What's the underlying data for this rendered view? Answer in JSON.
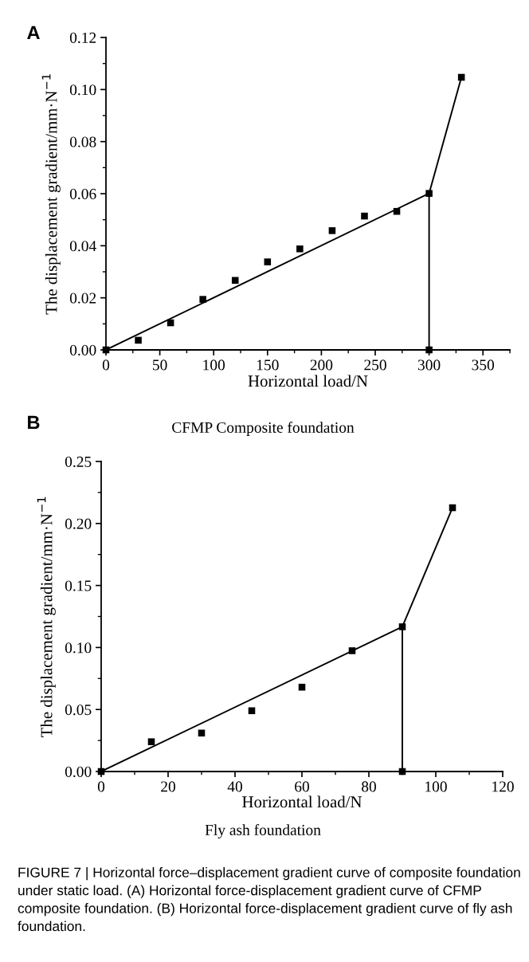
{
  "chart_data": [
    {
      "type": "scatter",
      "xlabel": "Horizontal load/N",
      "ylabel": "The displacement gradient/mm·N$^{−1}$",
      "annotations": [
        "A",
        "CFMP Composite foundation"
      ],
      "xlim": [
        0,
        375
      ],
      "ylim": [
        0,
        0.12
      ],
      "xticks": [
        0,
        {
          "value": 25,
          "label": null
        },
        50,
        {
          "value": 75,
          "label": null
        },
        100,
        {
          "value": 125,
          "label": null
        },
        150,
        {
          "value": 175,
          "label": null
        },
        200,
        {
          "value": 225,
          "label": null
        },
        250,
        {
          "value": 275,
          "label": null
        },
        300,
        {
          "value": 325,
          "label": null
        },
        350,
        {
          "value": 375,
          "label": null
        }
      ],
      "yticks": [
        {
          "value": 0,
          "label": "0.00"
        },
        {
          "value": 0.01,
          "label": null
        },
        {
          "value": 0.02,
          "label": "0.02"
        },
        {
          "value": 0.03,
          "label": null
        },
        {
          "value": 0.04,
          "label": "0.04"
        },
        {
          "value": 0.05,
          "label": null
        },
        {
          "value": 0.06,
          "label": "0.06"
        },
        {
          "value": 0.07,
          "label": null
        },
        {
          "value": 0.08,
          "label": "0.08"
        },
        {
          "value": 0.09,
          "label": null
        },
        {
          "value": 0.1,
          "label": "0.10"
        },
        {
          "value": 0.11,
          "label": null
        },
        {
          "value": 0.12,
          "label": "0.12"
        }
      ],
      "grid": false,
      "series": [
        {
          "marker": "square",
          "color": "#000000",
          "x": [
            0,
            30,
            60,
            90,
            120,
            150,
            180,
            210,
            240,
            270,
            300,
            330,
            300
          ],
          "values": [
            0,
            0.0037,
            0.0104,
            0.0194,
            0.0267,
            0.0338,
            0.0388,
            0.0458,
            0.0514,
            0.0532,
            0.0601,
            0.1047,
            0
          ]
        },
        {
          "type": "line",
          "marker": "none",
          "line_style": "solid",
          "color": "#000000",
          "x": [
            0,
            300,
            330
          ],
          "values": [
            0,
            0.0601,
            0.1047
          ]
        },
        {
          "type": "line",
          "marker": "none",
          "line_style": "solid",
          "color": "#000000",
          "x": [
            300,
            300
          ],
          "values": [
            0,
            0.0601
          ]
        }
      ]
    },
    {
      "type": "scatter",
      "xlabel": "Horizontal load/N",
      "ylabel": "The displacement gradient/mm·N$^{−1}$",
      "annotations": [
        "B",
        "Fly ash foundation",
        "FIGURE 7 | Horizontal force–displacement gradient curve of composite foundation under static load. (A) Horizontal force-displacement gradient curve of CFMP composite foundation. (B) Horizontal force-displacement gradient curve of fly ash foundation."
      ],
      "xlim": [
        0,
        120
      ],
      "ylim": [
        0,
        0.25
      ],
      "xticks": [
        0,
        {
          "value": 10,
          "label": null
        },
        20,
        {
          "value": 30,
          "label": null
        },
        40,
        {
          "value": 50,
          "label": null
        },
        60,
        {
          "value": 70,
          "label": null
        },
        80,
        {
          "value": 90,
          "label": null
        },
        100,
        {
          "value": 110,
          "label": null
        },
        120
      ],
      "yticks": [
        {
          "value": 0,
          "label": "0.00"
        },
        {
          "value": 0.025,
          "label": null
        },
        {
          "value": 0.05,
          "label": "0.05"
        },
        {
          "value": 0.075,
          "label": null
        },
        {
          "value": 0.1,
          "label": "0.10"
        },
        {
          "value": 0.125,
          "label": null
        },
        {
          "value": 0.15,
          "label": "0.15"
        },
        {
          "value": 0.175,
          "label": null
        },
        {
          "value": 0.2,
          "label": "0.20"
        },
        {
          "value": 0.225,
          "label": null
        },
        {
          "value": 0.25,
          "label": "0.25"
        }
      ],
      "grid": false,
      "series": [
        {
          "marker": "square",
          "color": "#000000",
          "x": [
            0,
            15,
            30,
            45,
            60,
            75,
            90,
            105,
            90
          ],
          "values": [
            0,
            0.024,
            0.031,
            0.049,
            0.068,
            0.0974,
            0.1167,
            0.2127,
            0
          ]
        },
        {
          "type": "line",
          "marker": "none",
          "line_style": "solid",
          "color": "#000000",
          "x": [
            0,
            90,
            105
          ],
          "values": [
            0,
            0.1167,
            0.2127
          ]
        },
        {
          "type": "line",
          "marker": "none",
          "line_style": "solid",
          "color": "#000000",
          "x": [
            90,
            90
          ],
          "values": [
            0,
            0.1167
          ]
        }
      ]
    }
  ]
}
